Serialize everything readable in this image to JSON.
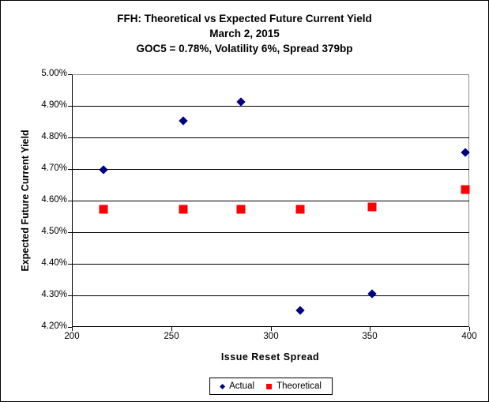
{
  "title": {
    "line1": "FFH: Theoretical vs Expected Future Current Yield",
    "line2": "March 2, 2015",
    "line3": "GOC5 = 0.78%, Volatility 6%, Spread 379bp"
  },
  "legend": {
    "position": "bottom-center",
    "items": [
      {
        "label": "Actual",
        "marker": "diamond",
        "color": "#000082"
      },
      {
        "label": "Theoretical",
        "marker": "square",
        "color": "#FF0000"
      }
    ]
  },
  "chart_data": {
    "type": "scatter",
    "title": "FFH: Theoretical vs Expected Future Current Yield",
    "subtitle": "March 2, 2015",
    "subtitle2": "GOC5 = 0.78%, Volatility 6%, Spread 379bp",
    "xlabel": "Issue Reset Spread",
    "ylabel": "Expected Future Current Yield",
    "xlim": [
      200,
      400
    ],
    "ylim": [
      4.2,
      5.0
    ],
    "grid": "horizontal",
    "legend_position": "bottom-center",
    "x_ticks": [
      {
        "v": 200,
        "label": "200"
      },
      {
        "v": 250,
        "label": "250"
      },
      {
        "v": 300,
        "label": "300"
      },
      {
        "v": 350,
        "label": "350"
      },
      {
        "v": 400,
        "label": "400"
      }
    ],
    "y_ticks": [
      {
        "v": 5.0,
        "label": "5.00%"
      },
      {
        "v": 4.9,
        "label": "4.90%"
      },
      {
        "v": 4.8,
        "label": "4.80%"
      },
      {
        "v": 4.7,
        "label": "4.70%"
      },
      {
        "v": 4.6,
        "label": "4.60%"
      },
      {
        "v": 4.5,
        "label": "4.50%"
      },
      {
        "v": 4.4,
        "label": "4.40%"
      },
      {
        "v": 4.3,
        "label": "4.30%"
      },
      {
        "v": 4.2,
        "label": "4.20%"
      }
    ],
    "series": [
      {
        "name": "Actual",
        "marker": "diamond",
        "color": "#000082",
        "points": [
          [
            216,
            4.698
          ],
          [
            256,
            4.853
          ],
          [
            285,
            4.913
          ],
          [
            315,
            4.253
          ],
          [
            351,
            4.306
          ],
          [
            398,
            4.753
          ]
        ]
      },
      {
        "name": "Theoretical",
        "marker": "square",
        "color": "#FF0000",
        "points": [
          [
            216,
            4.573
          ],
          [
            256,
            4.573
          ],
          [
            285,
            4.573
          ],
          [
            315,
            4.573
          ],
          [
            351,
            4.581
          ],
          [
            398,
            4.634
          ]
        ]
      }
    ]
  }
}
